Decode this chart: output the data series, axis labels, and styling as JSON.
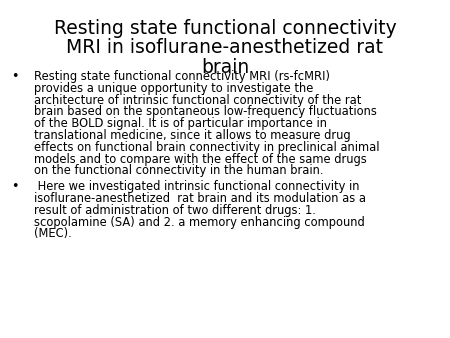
{
  "title_line1": "Resting state functional connectivity",
  "title_line2": "MRI in isoflurane-anesthetized rat",
  "title_line3": "brain",
  "background_color": "#ffffff",
  "text_color": "#000000",
  "title_fontsize": 13.5,
  "body_fontsize": 8.3,
  "bullet1_lines": [
    "Resting state functional connectivity MRI (rs-fcMRI)",
    "provides a unique opportunity to investigate the",
    "architecture of intrinsic functional connectivity of the rat",
    "brain based on the spontaneous low-frequency fluctuations",
    "of the BOLD signal. It is of particular importance in",
    "translational medicine, since it allows to measure drug",
    "effects on functional brain connectivity in preclinical animal",
    "models and to compare with the effect of the same drugs",
    "on the functional connectivity in the human brain."
  ],
  "bullet2_lines": [
    " Here we investigated intrinsic functional connectivity in",
    "isoflurane-anesthetized  rat brain and its modulation as a",
    "result of administration of two different drugs: 1.",
    "scopolamine (SA) and 2. a memory enhancing compound",
    "(MEC)."
  ]
}
